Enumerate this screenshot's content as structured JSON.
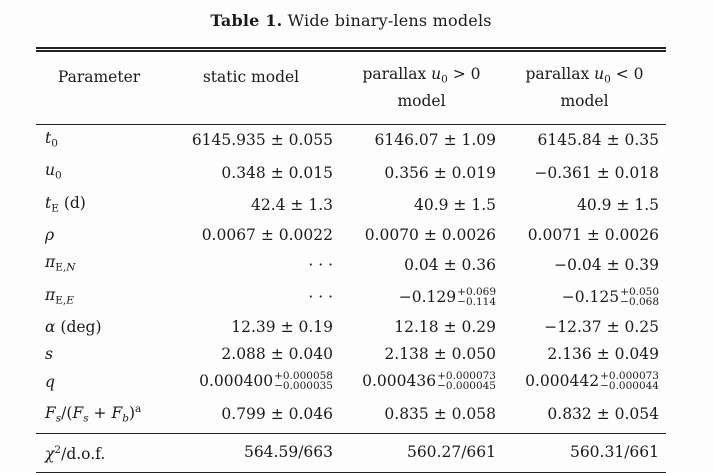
{
  "caption": {
    "label": "Table 1.",
    "text": " Wide binary-lens models"
  },
  "header": [
    {
      "id": "parameter",
      "line1": [
        {
          "t": "Parameter"
        }
      ],
      "line2": ""
    },
    {
      "id": "static-model",
      "line1": [
        {
          "t": "static model"
        }
      ],
      "line2": ""
    },
    {
      "id": "parallax-u0-pos",
      "line1": [
        {
          "t": "parallax "
        },
        {
          "t": "u",
          "i": 1
        },
        {
          "t": "0",
          "sub": 1
        },
        {
          "t": " > 0"
        }
      ],
      "line2": "model"
    },
    {
      "id": "parallax-u0-neg",
      "line1": [
        {
          "t": "parallax "
        },
        {
          "t": "u",
          "i": 1
        },
        {
          "t": "0",
          "sub": 1
        },
        {
          "t": " < 0"
        }
      ],
      "line2": "model"
    }
  ],
  "rows": [
    {
      "id": "t0",
      "rule_above": false,
      "param": [
        {
          "t": "t",
          "i": 1
        },
        {
          "t": "0",
          "sub": 1
        }
      ],
      "cells": [
        {
          "text": "6145.935 ± 0.055"
        },
        {
          "text": "6146.07 ± 1.09"
        },
        {
          "text": "6145.84 ± 0.35"
        }
      ]
    },
    {
      "id": "u0",
      "rule_above": false,
      "param": [
        {
          "t": "u",
          "i": 1
        },
        {
          "t": "0",
          "sub": 1
        }
      ],
      "cells": [
        {
          "text": "0.348 ± 0.015"
        },
        {
          "text": "0.356 ± 0.019"
        },
        {
          "text": "−0.361 ± 0.018"
        }
      ]
    },
    {
      "id": "tE",
      "rule_above": false,
      "param": [
        {
          "t": "t",
          "i": 1
        },
        {
          "t": "E",
          "sub": 1
        },
        {
          "t": " (d)"
        }
      ],
      "cells": [
        {
          "text": "42.4 ± 1.3"
        },
        {
          "text": "40.9 ± 1.5"
        },
        {
          "text": "40.9 ± 1.5"
        }
      ]
    },
    {
      "id": "rho",
      "rule_above": false,
      "param": [
        {
          "t": "ρ",
          "i": 1
        }
      ],
      "cells": [
        {
          "text": "0.0067 ± 0.0022"
        },
        {
          "text": "0.0070 ± 0.0026"
        },
        {
          "text": "0.0071 ± 0.0026"
        }
      ]
    },
    {
      "id": "piEN",
      "rule_above": false,
      "param": [
        {
          "t": "π",
          "i": 1
        },
        {
          "t": "E,",
          "sub": 1
        },
        {
          "t": "N",
          "sub": 1,
          "i": 1
        }
      ],
      "cells": [
        {
          "text": "· · ·"
        },
        {
          "text": "0.04 ± 0.36"
        },
        {
          "text": "−0.04 ± 0.39"
        }
      ]
    },
    {
      "id": "piEE",
      "rule_above": false,
      "param": [
        {
          "t": "π",
          "i": 1
        },
        {
          "t": "E,",
          "sub": 1
        },
        {
          "t": "E",
          "sub": 1,
          "i": 1
        }
      ],
      "cells": [
        {
          "text": "· · ·"
        },
        {
          "val": "−0.129",
          "plus": "+0.069",
          "minus": "−0.114"
        },
        {
          "val": "−0.125",
          "plus": "+0.050",
          "minus": "−0.068"
        }
      ]
    },
    {
      "id": "alpha",
      "rule_above": false,
      "param": [
        {
          "t": "α",
          "i": 1
        },
        {
          "t": " (deg)"
        }
      ],
      "cells": [
        {
          "text": "12.39 ± 0.19"
        },
        {
          "text": "12.18 ± 0.29"
        },
        {
          "text": "−12.37 ± 0.25"
        }
      ]
    },
    {
      "id": "s",
      "rule_above": false,
      "param": [
        {
          "t": "s",
          "i": 1
        }
      ],
      "cells": [
        {
          "text": "2.088 ± 0.040"
        },
        {
          "text": "2.138 ± 0.050"
        },
        {
          "text": "2.136 ± 0.049"
        }
      ]
    },
    {
      "id": "q",
      "rule_above": false,
      "param": [
        {
          "t": "q",
          "i": 1
        }
      ],
      "cells": [
        {
          "val": "0.000400",
          "plus": "+0.000058",
          "minus": "−0.000035"
        },
        {
          "val": "0.000436",
          "plus": "+0.000073",
          "minus": "−0.000045"
        },
        {
          "val": "0.000442",
          "plus": "+0.000073",
          "minus": "−0.000044"
        }
      ]
    },
    {
      "id": "Fs-ratio",
      "rule_above": false,
      "param": [
        {
          "t": "F",
          "i": 1
        },
        {
          "t": "s",
          "sub": 1,
          "i": 1
        },
        {
          "t": "/("
        },
        {
          "t": "F",
          "i": 1
        },
        {
          "t": "s",
          "sub": 1,
          "i": 1
        },
        {
          "t": " + "
        },
        {
          "t": "F",
          "i": 1
        },
        {
          "t": "b",
          "sub": 1,
          "i": 1
        },
        {
          "t": ")"
        },
        {
          "t": "a",
          "sup": 1
        }
      ],
      "cells": [
        {
          "text": "0.799 ± 0.046"
        },
        {
          "text": "0.835 ± 0.058"
        },
        {
          "text": "0.832 ± 0.054"
        }
      ]
    },
    {
      "id": "chi2-dof",
      "rule_above": true,
      "param": [
        {
          "t": "χ",
          "i": 1
        },
        {
          "t": "2",
          "sup": 1
        },
        {
          "t": "/d.o.f."
        }
      ],
      "cells": [
        {
          "text": "564.59/663"
        },
        {
          "text": "560.27/661"
        },
        {
          "text": "560.31/661"
        }
      ]
    }
  ]
}
